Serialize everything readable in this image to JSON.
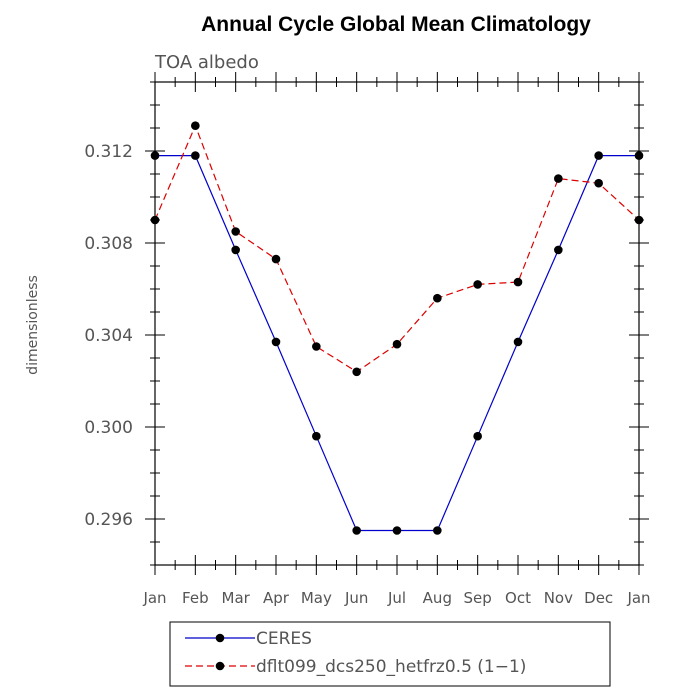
{
  "chart_data": {
    "type": "line",
    "title": "Annual Cycle Global Mean Climatology",
    "subtitle": "TOA albedo",
    "ylabel": "dimensionless",
    "xlabel": "",
    "categories": [
      "Jan",
      "Feb",
      "Mar",
      "Apr",
      "May",
      "Jun",
      "Jul",
      "Aug",
      "Sep",
      "Oct",
      "Nov",
      "Dec",
      "Jan"
    ],
    "ylim": [
      0.294,
      0.315
    ],
    "yticks": [
      "0.296",
      "0.300",
      "0.304",
      "0.308",
      "0.312"
    ],
    "ytick_values": [
      0.296,
      0.3,
      0.304,
      0.308,
      0.312
    ],
    "series": [
      {
        "name": "CERES",
        "color": "#0000cc",
        "dash": "solid",
        "values": [
          0.3118,
          0.3118,
          0.3077,
          0.3037,
          0.2996,
          0.2955,
          0.2955,
          0.2955,
          0.2996,
          0.3037,
          0.3077,
          0.3118,
          0.3118
        ]
      },
      {
        "name": "dflt099_dcs250_hetfrz0.5 (1−1)",
        "color": "#dd0000",
        "dash": "dashed",
        "values": [
          0.309,
          0.3131,
          0.3085,
          0.3073,
          0.3035,
          0.3024,
          0.3036,
          0.3056,
          0.3062,
          0.3063,
          0.3108,
          0.3106,
          0.309
        ]
      }
    ],
    "legend_position": "bottom"
  }
}
